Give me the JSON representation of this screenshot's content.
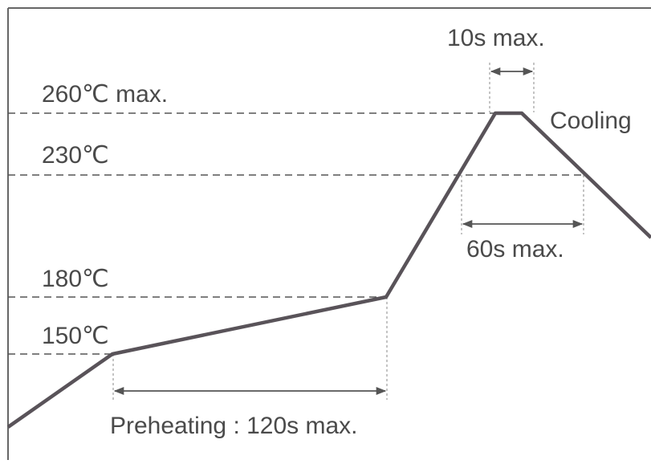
{
  "temps": {
    "t260": "260℃ max.",
    "t230": "230℃",
    "t180": "180℃",
    "t150": "150℃"
  },
  "times": {
    "peak": "10s max.",
    "reflow": "60s max.",
    "preheat": "Preheating : 120s max."
  },
  "phase": {
    "cooling": "Cooling"
  },
  "colors": {
    "profile": "#595359",
    "dashed": "#555555",
    "text": "#4a4a4a",
    "frame": "#666666"
  }
}
